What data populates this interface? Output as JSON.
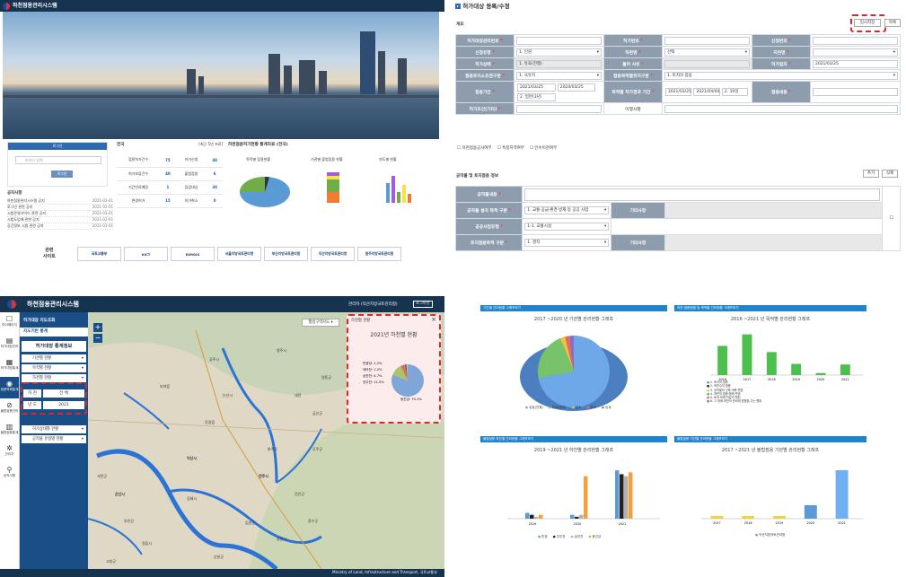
{
  "q1": {
    "title": "하천점용관리시스템",
    "login_btn": "로그인",
    "id_placeholder": "아이디 입력",
    "submit_btn": "로그인",
    "notice_title": "공지사항",
    "notices": [
      {
        "t": "하천점용관리시스템 공지",
        "d": "2021-03-01"
      },
      {
        "t": "로그인 관련 공지",
        "d": "2021-03-01"
      },
      {
        "t": "시범운영가이드 관련 공지",
        "d": "2021-03-01"
      },
      {
        "t": "시범도입에 관한 공지",
        "d": "2021-03-01"
      },
      {
        "t": "공간정보 시범 관련 공지",
        "d": "2021-03-01"
      }
    ],
    "stats_title": "전국",
    "stats_note": "[최근 5년 자료]",
    "stats": [
      [
        "점용허가건수",
        "75",
        "허가신청",
        "48"
      ],
      [
        "허가보류건수",
        "40",
        "불법점용",
        "6"
      ],
      [
        "기간만료예정",
        "1",
        "점검대상",
        "30"
      ],
      [
        "변경허가",
        "15",
        "허가취소",
        "0"
      ]
    ],
    "chart_title": "하천점용허가현황 통계자료 (전국)",
    "mini_titles": [
      "목적별 점용현황",
      "기관별 불법점용 현황",
      "연도별 현황"
    ],
    "related_label": "관련\n사이트",
    "related": [
      "국토교통부",
      "KICT",
      "RIMGIS",
      "서울지방국토관리청",
      "부산지방국토관리청",
      "익산지방국토관리청",
      "원주지방국토관리청"
    ]
  },
  "q2": {
    "title": "허가대상 등록/수정",
    "section1": "개요",
    "save_btn": "임시저장",
    "list_btn": "목록",
    "rows": [
      {
        "a": "허가대장관리번호",
        "b": "",
        "c": "허가번호",
        "d": "",
        "e": "신청번호",
        "f": ""
      },
      {
        "a": "신청유형",
        "b": "1. 인원",
        "c": "하천명",
        "d": "선택",
        "e": "지천명",
        "f": ""
      },
      {
        "a": "허가상태",
        "b": "1. 유효(진행)",
        "c": "불허 사유",
        "d": "",
        "e": "허가일자",
        "f": "2021/03/25"
      },
      {
        "a": "점용토지소유권구분",
        "b": "1. 국유지",
        "c": "점용목적별위치구분",
        "d": "1. 토지의 점용"
      },
      {
        "a": "점용기간",
        "b": "2021/03/25",
        "b2": "2024/03/25",
        "b3": "2. 일반(3년)",
        "c": "목적별 허가경과 기간",
        "d": "2021/03/25",
        "d2": "2021/04/04",
        "d3": "2. 10일",
        "e": "점용내용",
        "f": ""
      },
      {
        "a": "허가조건(기타)",
        "b": "",
        "c": "이행사항",
        "d": ""
      }
    ],
    "checks": [
      "하천점용공사여부",
      "특정지역여부",
      "인수이관여부"
    ],
    "section2": "공작물 및 토지점용 정보",
    "add_btn": "추가",
    "del_btn": "삭제",
    "rows2": [
      {
        "a": "공작물내용",
        "b": ""
      },
      {
        "a": "공작물 설치 목적 구분",
        "b": "1. 교통·공급·환경·방재 등 공공 사업",
        "c": "기타사항"
      },
      {
        "a": "공공사업유형",
        "b": "1-1. 교통시설"
      },
      {
        "a": "토지점용목적 구분",
        "b": "1. 경작",
        "c": "기타사항"
      }
    ]
  },
  "q3": {
    "title": "하천점용관리시스템",
    "user": "관리자 (익산지방국토관리청)",
    "logout": "로그아웃",
    "side_icons": [
      "마이페이지",
      "허가대장관리",
      "허가대장통계",
      "점용목록통계",
      "불법점용관리",
      "불법점용통계",
      "관리자",
      "공지사항"
    ],
    "menu": [
      "허가대장 지도조회",
      "지도기반 통계"
    ],
    "panel_title": "허가대장 통계정보",
    "filters": [
      "기관별 현황",
      "목적별 현황",
      "하천별 현황"
    ],
    "year_label": [
      "하 천",
      "전 체",
      "년 도",
      "2021"
    ],
    "filters2": [
      "허가상태별 현황",
      "공작물 유형별 현황"
    ],
    "map_btn": "행정구역지도",
    "popup_title": "하천별 현황",
    "popup_chart_title": "2021년 하천별 현황",
    "pie_labels": [
      "만경강: 1.2%",
      "대야천: 1.2%",
      "삼천천: 4.7%",
      "전주천: 11.5%",
      "동진강: 79.1%"
    ],
    "map_places": [
      "익산시",
      "군산시",
      "전주시",
      "김제시",
      "완주군",
      "정읍시",
      "서천군",
      "부안군",
      "논산시",
      "강경읍",
      "고창군",
      "순창군",
      "남원시",
      "임실군",
      "진안군",
      "무주군",
      "장수군",
      "공주시",
      "청주시",
      "대전",
      "부여읍",
      "금산군",
      "영동군"
    ],
    "footer": "Ministry of Land, Infrastructure and Transport, 국토교통부"
  },
  "q4": {
    "panels": [
      "기간별 관리현황 그래프보기",
      "하천 점용현황 및 목적별 관리현황 그래프보기",
      "불법점용 하천별 관리현황 그래프보기",
      "불법점용 기관별 관리현황 그래프보기"
    ],
    "titles": [
      "2017 ~2020 년 기관별 관리현황 그래프",
      "2016 ~2021 년 목적별 관리현황 그래프",
      "2019 ~2021 년 하천별 관리현황 그래프",
      "2017 ~2021 년 불법점용 기관별 관리현황 그래프"
    ],
    "pie_legend": [
      "유효(진행)",
      "만료(종료)",
      "말소",
      "취소",
      "승계"
    ],
    "bar_legend": [
      "1. 토지의 점용",
      "2. 하천수의 점용",
      "3. 공작물의 신축·개축·변경",
      "4. 하천의 점용·형태 변경",
      "5. 토석·모래·자갈의 채취",
      "6. 그 밖에 하천의 관리에 영향을 주는 행위"
    ],
    "legend3": [
      "만경",
      "전주천",
      "삼천천",
      "동진강"
    ],
    "legend4": [
      "익산지방국토관리청"
    ]
  },
  "chart_data": [
    {
      "type": "pie",
      "title": "2021년 하천별 현황",
      "categories": [
        "만경강",
        "대야천",
        "삼천천",
        "전주천",
        "동진강"
      ],
      "values": [
        1.2,
        1.2,
        4.7,
        11.5,
        79.1
      ]
    },
    {
      "type": "pie",
      "title": "2017 ~2020 년 기관별 관리현황 그래프",
      "categories": [
        "유효(진행)",
        "만료(종료)",
        "말소",
        "취소",
        "승계"
      ],
      "values": [
        72,
        22,
        2,
        2,
        2
      ]
    },
    {
      "type": "bar",
      "title": "2016 ~2021 년 목적별 관리현황 그래프",
      "categories": [
        "2016",
        "2017",
        "2018",
        "2019",
        "2020",
        "2021"
      ],
      "values": [
        99,
        138,
        78,
        38,
        7,
        36
      ]
    },
    {
      "type": "bar",
      "title": "2019 ~2021 년 하천별 관리현황 그래프",
      "categories": [
        "2019",
        "2020",
        "2021"
      ],
      "series": [
        {
          "name": "만경",
          "values": [
            3,
            2,
            25
          ]
        },
        {
          "name": "전주천",
          "values": [
            2,
            1,
            23
          ]
        },
        {
          "name": "삼천천",
          "values": [
            1,
            2,
            22
          ]
        },
        {
          "name": "동진강",
          "values": [
            2,
            22,
            24
          ]
        }
      ]
    },
    {
      "type": "bar",
      "title": "2017 ~2021 년 불법점용 기관별 관리현황 그래프",
      "categories": [
        "2017",
        "2018",
        "2019",
        "2020",
        "2021"
      ],
      "values": [
        1,
        1,
        1,
        5,
        18
      ]
    }
  ]
}
